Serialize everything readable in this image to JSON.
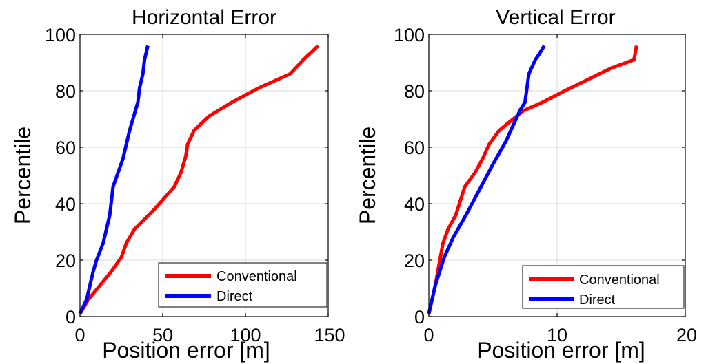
{
  "chart_data": [
    {
      "type": "line",
      "title": "Horizontal Error",
      "xlabel": "Position error [m]",
      "ylabel": "Percentile",
      "xlim": [
        0,
        150
      ],
      "ylim": [
        0,
        100
      ],
      "xticks": [
        "0",
        "50",
        "100",
        "150"
      ],
      "yticks": [
        "0",
        "20",
        "40",
        "60",
        "80",
        "100"
      ],
      "grid": true,
      "legend_position": "bottom-right",
      "series": [
        {
          "name": "Conventional",
          "color": "#ff0000",
          "x": [
            0,
            5,
            12,
            19,
            25,
            28,
            33,
            45,
            57,
            61,
            64,
            65,
            69,
            78,
            92,
            108,
            127,
            135,
            144
          ],
          "y": [
            1,
            6,
            11,
            16,
            21,
            26,
            31,
            38,
            46,
            51,
            57,
            61,
            66,
            71,
            76,
            81,
            86,
            91,
            96
          ]
        },
        {
          "name": "Direct",
          "color": "#0000ff",
          "x": [
            0,
            4,
            6,
            8,
            10,
            14,
            16,
            18,
            19,
            20,
            23,
            26,
            28,
            30,
            35,
            36,
            38,
            39,
            41
          ],
          "y": [
            1,
            6,
            11,
            16,
            20,
            26,
            31,
            36,
            41,
            46,
            51,
            56,
            61,
            66,
            76,
            81,
            86,
            91,
            96
          ]
        }
      ]
    },
    {
      "type": "line",
      "title": "Vertical Error",
      "xlabel": "Position error [m]",
      "ylabel": "Percentile",
      "xlim": [
        0,
        20
      ],
      "ylim": [
        0,
        100
      ],
      "xticks": [
        "0",
        "10",
        "20"
      ],
      "yticks": [
        "0",
        "20",
        "40",
        "60",
        "80",
        "100"
      ],
      "grid": true,
      "legend_position": "bottom-right",
      "series": [
        {
          "name": "Conventional",
          "color": "#ff0000",
          "x": [
            0,
            0.5,
            0.9,
            1.1,
            1.5,
            2.1,
            2.8,
            3.6,
            4.2,
            4.7,
            5.5,
            6.3,
            7.4,
            8.9,
            10.6,
            12.4,
            14.2,
            16.0,
            16.2
          ],
          "y": [
            1,
            11,
            21,
            26,
            31,
            36,
            46,
            51,
            56,
            61,
            66,
            69,
            73,
            76,
            80,
            84,
            88,
            91,
            96
          ]
        },
        {
          "name": "Direct",
          "color": "#0000ff",
          "x": [
            0,
            0.5,
            1.2,
            1.9,
            2.9,
            3.6,
            4.3,
            5.0,
            5.5,
            6.0,
            6.4,
            6.8,
            7.1,
            7.5,
            7.8,
            8.3,
            8.6,
            9.0
          ],
          "y": [
            1,
            11,
            21,
            28,
            36,
            42,
            48,
            54,
            58,
            62,
            66,
            70,
            73,
            76,
            86,
            91,
            93,
            96
          ]
        }
      ]
    }
  ]
}
